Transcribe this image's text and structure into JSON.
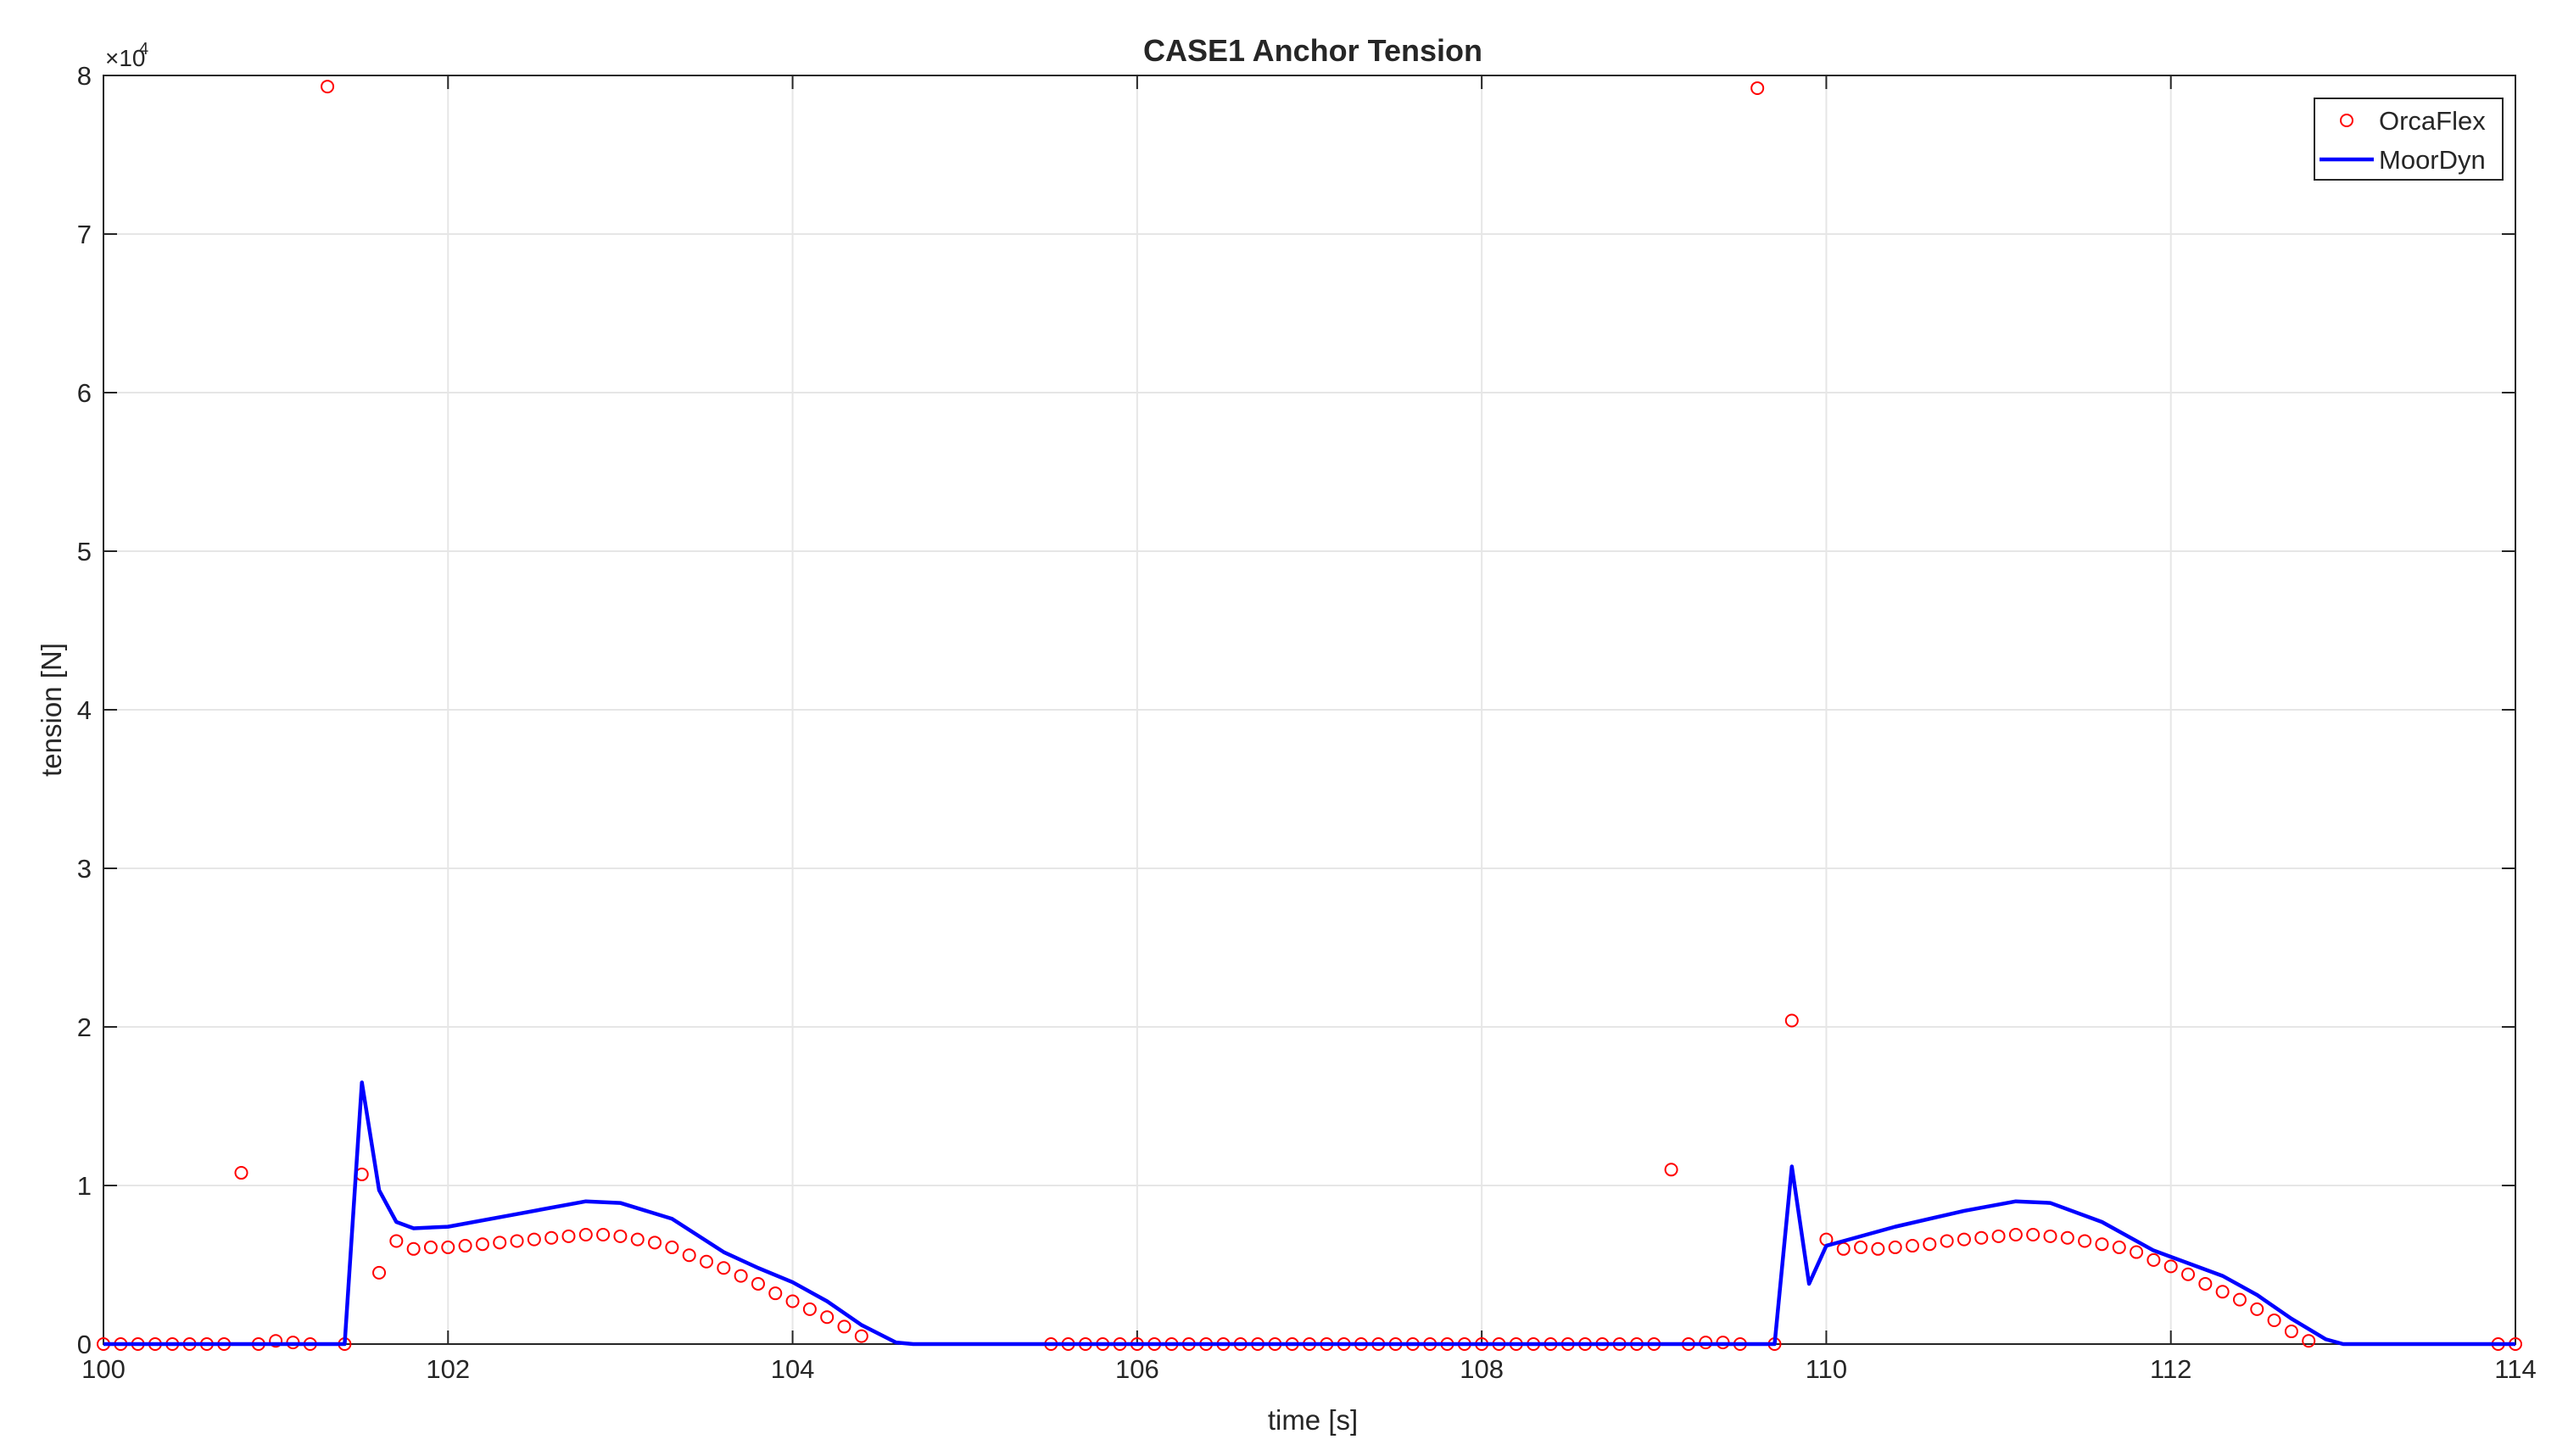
{
  "chart_data": {
    "type": "line",
    "title": "CASE1 Anchor Tension",
    "x_label": "time [s]",
    "y_label": "tension [N]",
    "y_multiplier": "×10",
    "y_exponent": "4",
    "xlim": [
      100,
      114
    ],
    "xticks": [
      100,
      102,
      104,
      106,
      108,
      110,
      112,
      114
    ],
    "ylim": [
      0,
      80000
    ],
    "yticks": [
      {
        "value": 0,
        "label": "0"
      },
      {
        "value": 10000,
        "label": "1"
      },
      {
        "value": 20000,
        "label": "2"
      },
      {
        "value": 30000,
        "label": "3"
      },
      {
        "value": 40000,
        "label": "4"
      },
      {
        "value": 50000,
        "label": "5"
      },
      {
        "value": 60000,
        "label": "6"
      },
      {
        "value": 70000,
        "label": "7"
      },
      {
        "value": 80000,
        "label": "8"
      }
    ],
    "grid": true,
    "legend": "upper right",
    "series": [
      {
        "name": "OrcaFlex",
        "color": "#ff0000",
        "mode": "markers",
        "x": [
          100.0,
          100.1,
          100.2,
          100.3,
          100.4,
          100.5,
          100.6,
          100.7,
          100.8,
          100.9,
          101.0,
          101.1,
          101.2,
          101.3,
          101.4,
          101.5,
          101.6,
          101.7,
          101.8,
          101.9,
          102.0,
          102.1,
          102.2,
          102.3,
          102.4,
          102.5,
          102.6,
          102.7,
          102.8,
          102.9,
          103.0,
          103.1,
          103.2,
          103.3,
          103.4,
          103.5,
          103.6,
          103.7,
          103.8,
          103.9,
          104.0,
          104.1,
          104.2,
          104.3,
          104.4,
          105.5,
          105.6,
          105.7,
          105.8,
          105.9,
          106.0,
          106.1,
          106.2,
          106.3,
          106.4,
          106.5,
          106.6,
          106.7,
          106.8,
          106.9,
          107.0,
          107.1,
          107.2,
          107.3,
          107.4,
          107.5,
          107.6,
          107.7,
          107.8,
          107.9,
          108.0,
          108.1,
          108.2,
          108.3,
          108.4,
          108.5,
          108.6,
          108.7,
          108.8,
          108.9,
          109.0,
          109.1,
          109.2,
          109.3,
          109.4,
          109.5,
          109.6,
          109.7,
          109.8,
          110.0,
          110.1,
          110.2,
          110.3,
          110.4,
          110.5,
          110.6,
          110.7,
          110.8,
          110.9,
          111.0,
          111.1,
          111.2,
          111.3,
          111.4,
          111.5,
          111.6,
          111.7,
          111.8,
          111.9,
          112.0,
          112.1,
          112.2,
          112.3,
          112.4,
          112.5,
          112.6,
          112.7,
          112.8,
          113.9,
          114.0
        ],
        "values": [
          0,
          0,
          0,
          0,
          0,
          0,
          0,
          0,
          10800,
          0,
          200,
          100,
          0,
          79300,
          0,
          10700,
          4500,
          6500,
          6000,
          6100,
          6100,
          6200,
          6300,
          6400,
          6500,
          6600,
          6700,
          6800,
          6900,
          6900,
          6800,
          6600,
          6400,
          6100,
          5600,
          5200,
          4800,
          4300,
          3800,
          3200,
          2700,
          2200,
          1700,
          1100,
          500,
          0,
          0,
          0,
          0,
          0,
          0,
          0,
          0,
          0,
          0,
          0,
          0,
          0,
          0,
          0,
          0,
          0,
          0,
          0,
          0,
          0,
          0,
          0,
          0,
          0,
          0,
          0,
          0,
          0,
          0,
          0,
          0,
          0,
          0,
          0,
          0,
          11000,
          0,
          100,
          100,
          0,
          79200,
          0,
          20400,
          6600,
          6000,
          6100,
          6000,
          6100,
          6200,
          6300,
          6500,
          6600,
          6700,
          6800,
          6900,
          6900,
          6800,
          6700,
          6500,
          6300,
          6100,
          5800,
          5300,
          4900,
          4400,
          3800,
          3300,
          2800,
          2200,
          1500,
          800,
          200,
          0,
          0
        ]
      },
      {
        "name": "MoorDyn",
        "color": "#0000ff",
        "mode": "line",
        "x": [
          100,
          101.4,
          101.5,
          101.6,
          101.7,
          101.8,
          102.0,
          102.4,
          102.8,
          103.0,
          103.3,
          103.6,
          103.8,
          104.0,
          104.2,
          104.4,
          104.6,
          104.7,
          109.7,
          109.8,
          109.9,
          110.0,
          110.4,
          110.8,
          111.1,
          111.3,
          111.6,
          111.9,
          112.1,
          112.3,
          112.5,
          112.7,
          112.9,
          113.0,
          114
        ],
        "values": [
          0,
          0,
          16500,
          9700,
          7700,
          7300,
          7400,
          8200,
          9000,
          8900,
          7900,
          5800,
          4800,
          3900,
          2700,
          1200,
          100,
          0,
          0,
          11200,
          3800,
          6200,
          7400,
          8400,
          9000,
          8900,
          7700,
          5900,
          5100,
          4300,
          3100,
          1600,
          300,
          0,
          0
        ]
      }
    ]
  }
}
